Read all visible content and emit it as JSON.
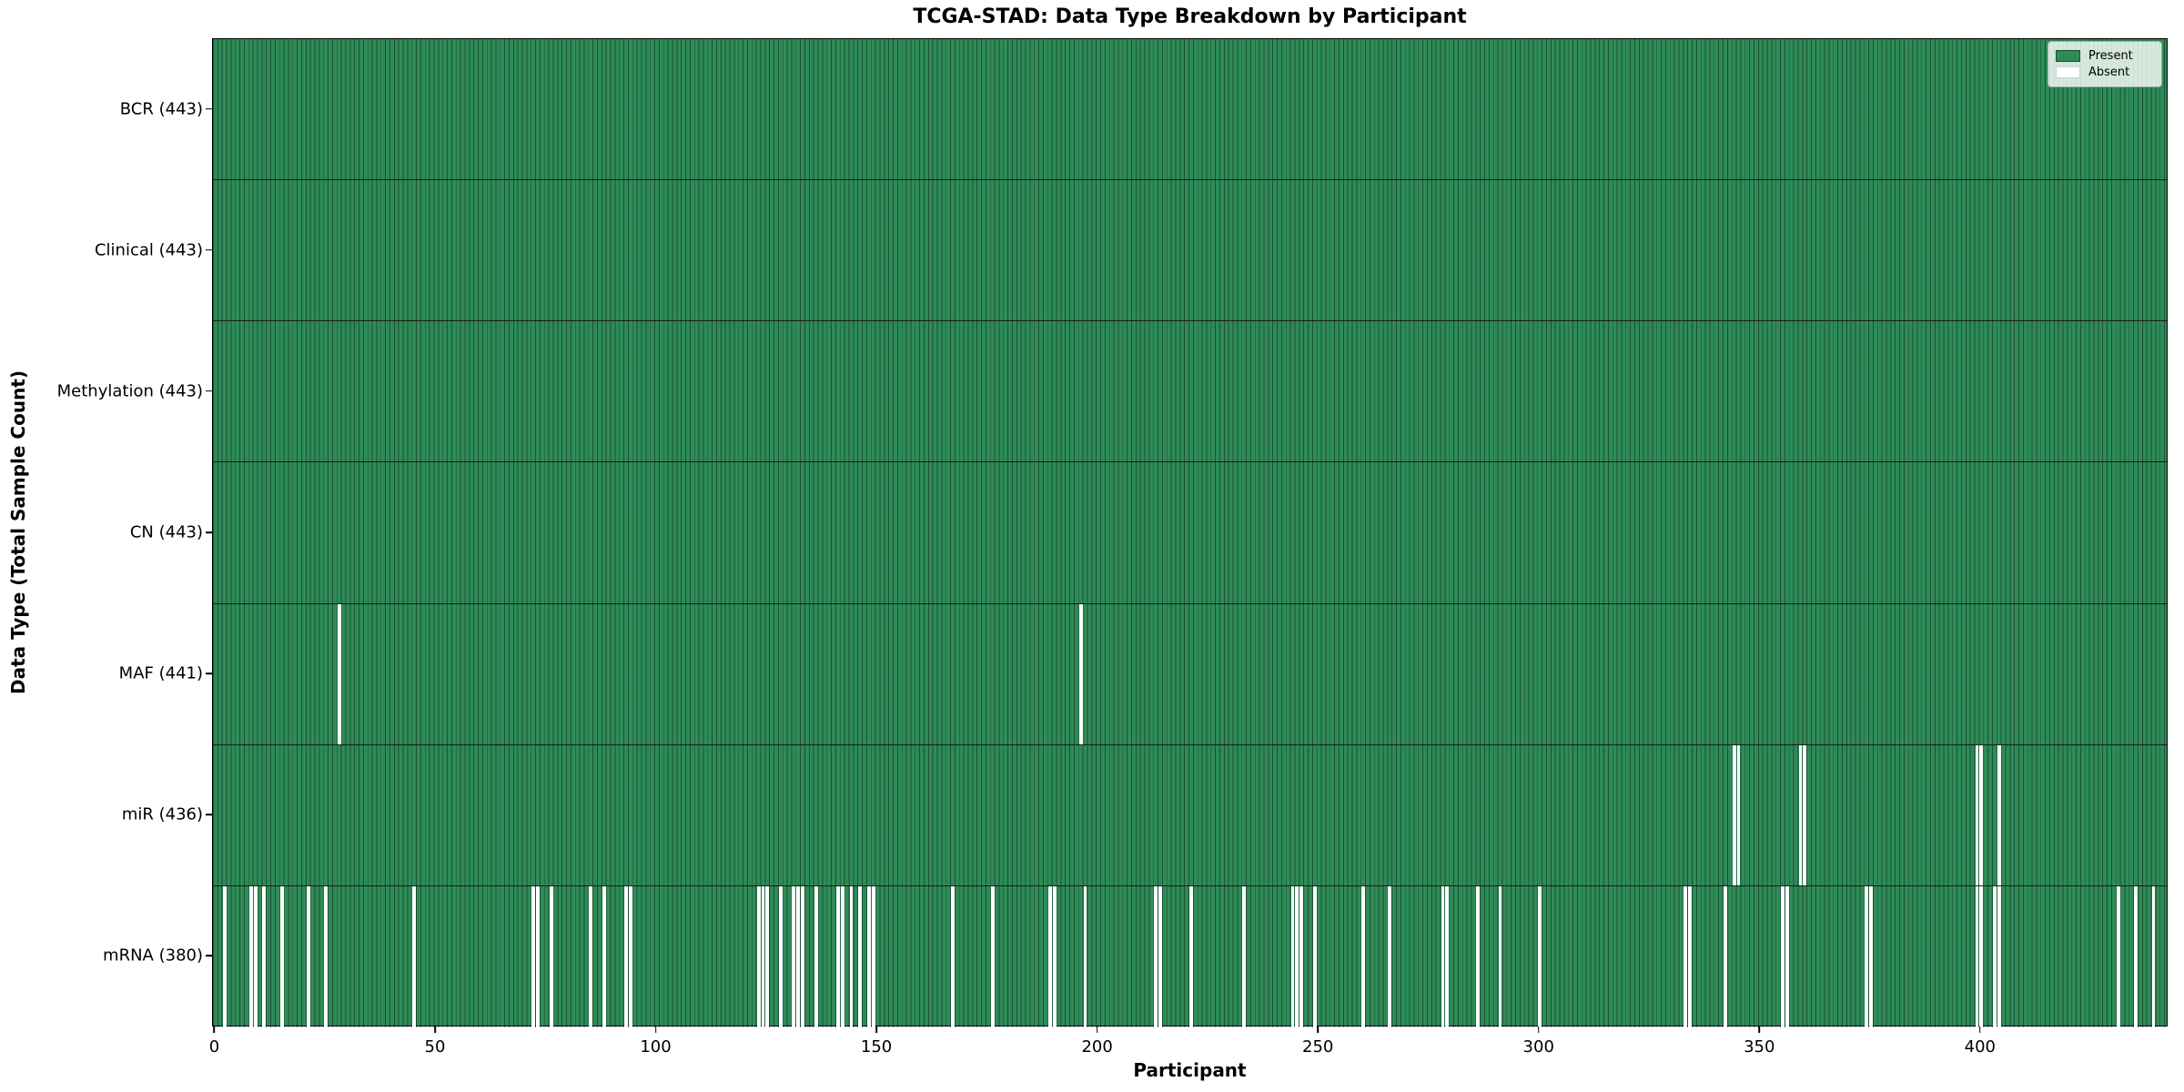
{
  "title": "TCGA-STAD: Data Type Breakdown by Participant",
  "axes": {
    "x_label": "Participant",
    "y_label": "Data Type (Total Sample Count)"
  },
  "legend": {
    "present_label": "Present",
    "absent_label": "Absent"
  },
  "colors": {
    "present": "#2e8b57",
    "absent": "#ffffff",
    "cell_edge": "#12301f",
    "row_separator": "#1a1a1a",
    "axis": "#000000"
  },
  "chart_data": {
    "type": "heatmap",
    "title": "TCGA-STAD: Data Type Breakdown by Participant",
    "xlabel": "Participant",
    "ylabel": "Data Type (Total Sample Count)",
    "legend": [
      "Present",
      "Absent"
    ],
    "legend_position": "upper right",
    "grid": false,
    "x_range": [
      0,
      443
    ],
    "n_participants": 443,
    "x_ticks": [
      0,
      50,
      100,
      150,
      200,
      250,
      300,
      350,
      400
    ],
    "value_encoding": {
      "present": 1,
      "absent": 0
    },
    "rows": [
      {
        "label": "BCR (443)",
        "data_type": "BCR",
        "total_sample_count": 443,
        "absent_participants": []
      },
      {
        "label": "Clinical (443)",
        "data_type": "Clinical",
        "total_sample_count": 443,
        "absent_participants": []
      },
      {
        "label": "Methylation (443)",
        "data_type": "Methylation",
        "total_sample_count": 443,
        "absent_participants": []
      },
      {
        "label": "CN (443)",
        "data_type": "CN",
        "total_sample_count": 443,
        "absent_participants": []
      },
      {
        "label": "MAF (441)",
        "data_type": "MAF",
        "total_sample_count": 441,
        "absent_participants": [
          28,
          196
        ]
      },
      {
        "label": "miR (436)",
        "data_type": "miR",
        "total_sample_count": 436,
        "absent_participants": [
          344,
          345,
          359,
          360,
          399,
          400,
          404
        ]
      },
      {
        "label": "mRNA (380)",
        "data_type": "mRNA",
        "total_sample_count": 380,
        "absent_participants": [
          2,
          8,
          9,
          11,
          15,
          21,
          25,
          45,
          72,
          73,
          76,
          85,
          88,
          93,
          94,
          123,
          124,
          125,
          128,
          131,
          132,
          133,
          136,
          141,
          142,
          144,
          146,
          148,
          149,
          167,
          176,
          189,
          190,
          197,
          213,
          214,
          221,
          233,
          244,
          245,
          246,
          249,
          260,
          266,
          278,
          279,
          286,
          291,
          300,
          333,
          334,
          342,
          355,
          356,
          374,
          375,
          399,
          400,
          403,
          404,
          431,
          435,
          439
        ]
      }
    ]
  }
}
